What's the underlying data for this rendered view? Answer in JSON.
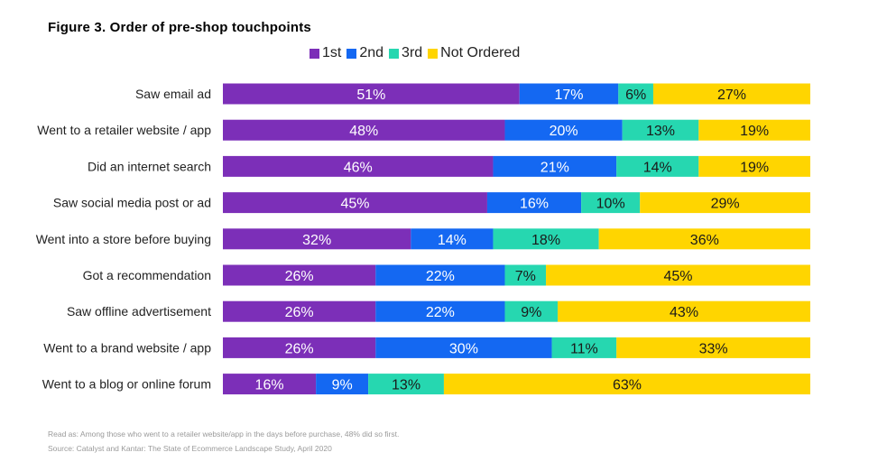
{
  "title": "Figure 3. Order of pre-shop touchpoints",
  "legend": [
    {
      "label": "1st",
      "color": "#7c2fb8"
    },
    {
      "label": "2nd",
      "color": "#1468f2"
    },
    {
      "label": "3rd",
      "color": "#26d7b0"
    },
    {
      "label": "Not Ordered",
      "color": "#ffd500"
    }
  ],
  "footnote": {
    "read_as": "Read as: Among those who went to a retailer website/app in the days before purchase, 48% did so first.",
    "source": "Source: Catalyst and Kantar: The State of Ecommerce Landscape Study, April 2020"
  },
  "chart_data": {
    "type": "bar",
    "orientation": "horizontal",
    "stacked": true,
    "title": "Figure 3. Order of pre-shop touchpoints",
    "categories": [
      "Saw email ad",
      "Went to a retailer website / app",
      "Did an internet search",
      "Saw social media post or ad",
      "Went into a store before buying",
      "Got a recommendation",
      "Saw offline advertisement",
      "Went to a brand website / app",
      "Went to a blog or online forum"
    ],
    "series": [
      {
        "name": "1st",
        "color": "#7c2fb8",
        "values": [
          51,
          48,
          46,
          45,
          32,
          26,
          26,
          26,
          16
        ]
      },
      {
        "name": "2nd",
        "color": "#1468f2",
        "values": [
          17,
          20,
          21,
          16,
          14,
          22,
          22,
          30,
          9
        ]
      },
      {
        "name": "3rd",
        "color": "#26d7b0",
        "values": [
          6,
          13,
          14,
          10,
          18,
          7,
          9,
          11,
          13
        ]
      },
      {
        "name": "Not Ordered",
        "color": "#ffd500",
        "values": [
          27,
          19,
          19,
          29,
          36,
          45,
          43,
          33,
          63
        ]
      }
    ],
    "value_suffix": "%",
    "legend_position": "top",
    "grid": false
  }
}
